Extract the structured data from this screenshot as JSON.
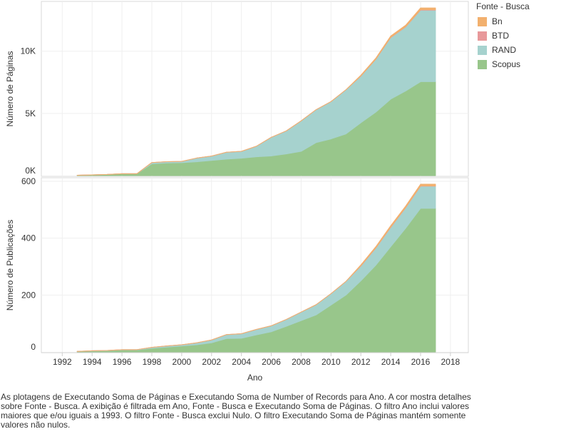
{
  "legend": {
    "title": "Fonte - Busca",
    "items": [
      {
        "label": "Bn",
        "color": "#f2b06e"
      },
      {
        "label": "BTD",
        "color": "#e8999b"
      },
      {
        "label": "RAND",
        "color": "#a6d2ce"
      },
      {
        "label": "Scopus",
        "color": "#98c68b"
      }
    ]
  },
  "caption": "As plotagens de Executando Soma de Páginas e Executando Soma de Number of Records para Ano.  A cor mostra detalhes sobre Fonte - Busca. A exibição é filtrada em Ano, Fonte - Busca e Executando Soma de Páginas. O filtro Ano inclui valores maiores que e/ou iguais a 1993. O filtro Fonte - Busca exclui Nulo. O filtro Executando Soma de Páginas mantém somente valores não nulos.",
  "chart_data": [
    {
      "type": "area",
      "stacked": true,
      "xlabel": "",
      "ylabel": "Número de Páginas",
      "x_range": [
        1990.6,
        2019.2
      ],
      "ylim": [
        0,
        14000
      ],
      "y_ticks": [
        0,
        5000,
        10000
      ],
      "y_tick_labels": [
        "0K",
        "5K",
        "10K"
      ],
      "grid": true,
      "x": [
        1993,
        1994,
        1995,
        1996,
        1997,
        1998,
        1999,
        2000,
        2001,
        2002,
        2003,
        2004,
        2005,
        2006,
        2007,
        2008,
        2009,
        2010,
        2011,
        2012,
        2013,
        2014,
        2015,
        2016,
        2017
      ],
      "series": [
        {
          "name": "Scopus",
          "color": "#98c68b",
          "values": [
            30,
            60,
            90,
            150,
            150,
            950,
            1020,
            1040,
            1110,
            1220,
            1330,
            1400,
            1510,
            1580,
            1740,
            1950,
            2650,
            2950,
            3350,
            4250,
            5100,
            6150,
            6800,
            7550,
            7550
          ]
        },
        {
          "name": "RAND",
          "color": "#a6d2ce",
          "values": [
            0,
            0,
            0,
            0,
            0,
            100,
            100,
            100,
            300,
            350,
            550,
            550,
            850,
            1500,
            1850,
            2450,
            2650,
            3000,
            3550,
            3750,
            4250,
            4950,
            5150,
            5750,
            5750
          ]
        },
        {
          "name": "BTD",
          "color": "#e8999b",
          "values": [
            0,
            0,
            0,
            0,
            0,
            0,
            0,
            0,
            0,
            0,
            0,
            0,
            0,
            0,
            0,
            0,
            0,
            0,
            0,
            10,
            10,
            20,
            20,
            30,
            30
          ]
        },
        {
          "name": "Bn",
          "color": "#f2b06e",
          "values": [
            0,
            0,
            0,
            0,
            0,
            0,
            0,
            0,
            0,
            0,
            0,
            0,
            0,
            0,
            0,
            0,
            0,
            0,
            0,
            60,
            80,
            100,
            120,
            150,
            150
          ]
        }
      ]
    },
    {
      "type": "area",
      "stacked": true,
      "xlabel": "Ano",
      "ylabel": "Número de Publicações",
      "x_range": [
        1990.6,
        2019.2
      ],
      "ylim": [
        0,
        600
      ],
      "y_ticks": [
        0,
        200,
        400,
        600
      ],
      "y_tick_labels": [
        "0",
        "200",
        "400",
        "600"
      ],
      "x_ticks": [
        1992,
        1994,
        1996,
        1998,
        2000,
        2002,
        2004,
        2006,
        2008,
        2010,
        2012,
        2014,
        2016,
        2018
      ],
      "grid": true,
      "x": [
        1993,
        1994,
        1995,
        1996,
        1997,
        1998,
        1999,
        2000,
        2001,
        2002,
        2003,
        2004,
        2005,
        2006,
        2007,
        2008,
        2009,
        2010,
        2011,
        2012,
        2013,
        2014,
        2015,
        2016,
        2017
      ],
      "series": [
        {
          "name": "Scopus",
          "color": "#98c68b",
          "values": [
            2,
            3,
            4,
            7,
            7,
            13,
            17,
            21,
            25,
            32,
            47,
            48,
            60,
            71,
            90,
            110,
            130,
            165,
            200,
            250,
            305,
            370,
            435,
            505,
            505
          ]
        },
        {
          "name": "RAND",
          "color": "#a6d2ce",
          "values": [
            0,
            1,
            1,
            1,
            1,
            3,
            4,
            4,
            7,
            10,
            14,
            16,
            19,
            21,
            24,
            30,
            36,
            40,
            48,
            52,
            60,
            68,
            72,
            78,
            78
          ]
        },
        {
          "name": "BTD",
          "color": "#e8999b",
          "values": [
            0,
            0,
            0,
            0,
            0,
            0,
            0,
            0,
            0,
            0,
            0,
            0,
            0,
            0,
            0,
            0,
            0,
            0,
            0,
            1,
            1,
            1,
            1,
            1,
            1
          ]
        },
        {
          "name": "Bn",
          "color": "#f2b06e",
          "values": [
            0,
            0,
            0,
            0,
            0,
            0,
            0,
            0,
            0,
            0,
            0,
            0,
            0,
            0,
            0,
            0,
            0,
            0,
            0,
            3,
            4,
            5,
            5,
            6,
            6
          ]
        }
      ]
    }
  ]
}
